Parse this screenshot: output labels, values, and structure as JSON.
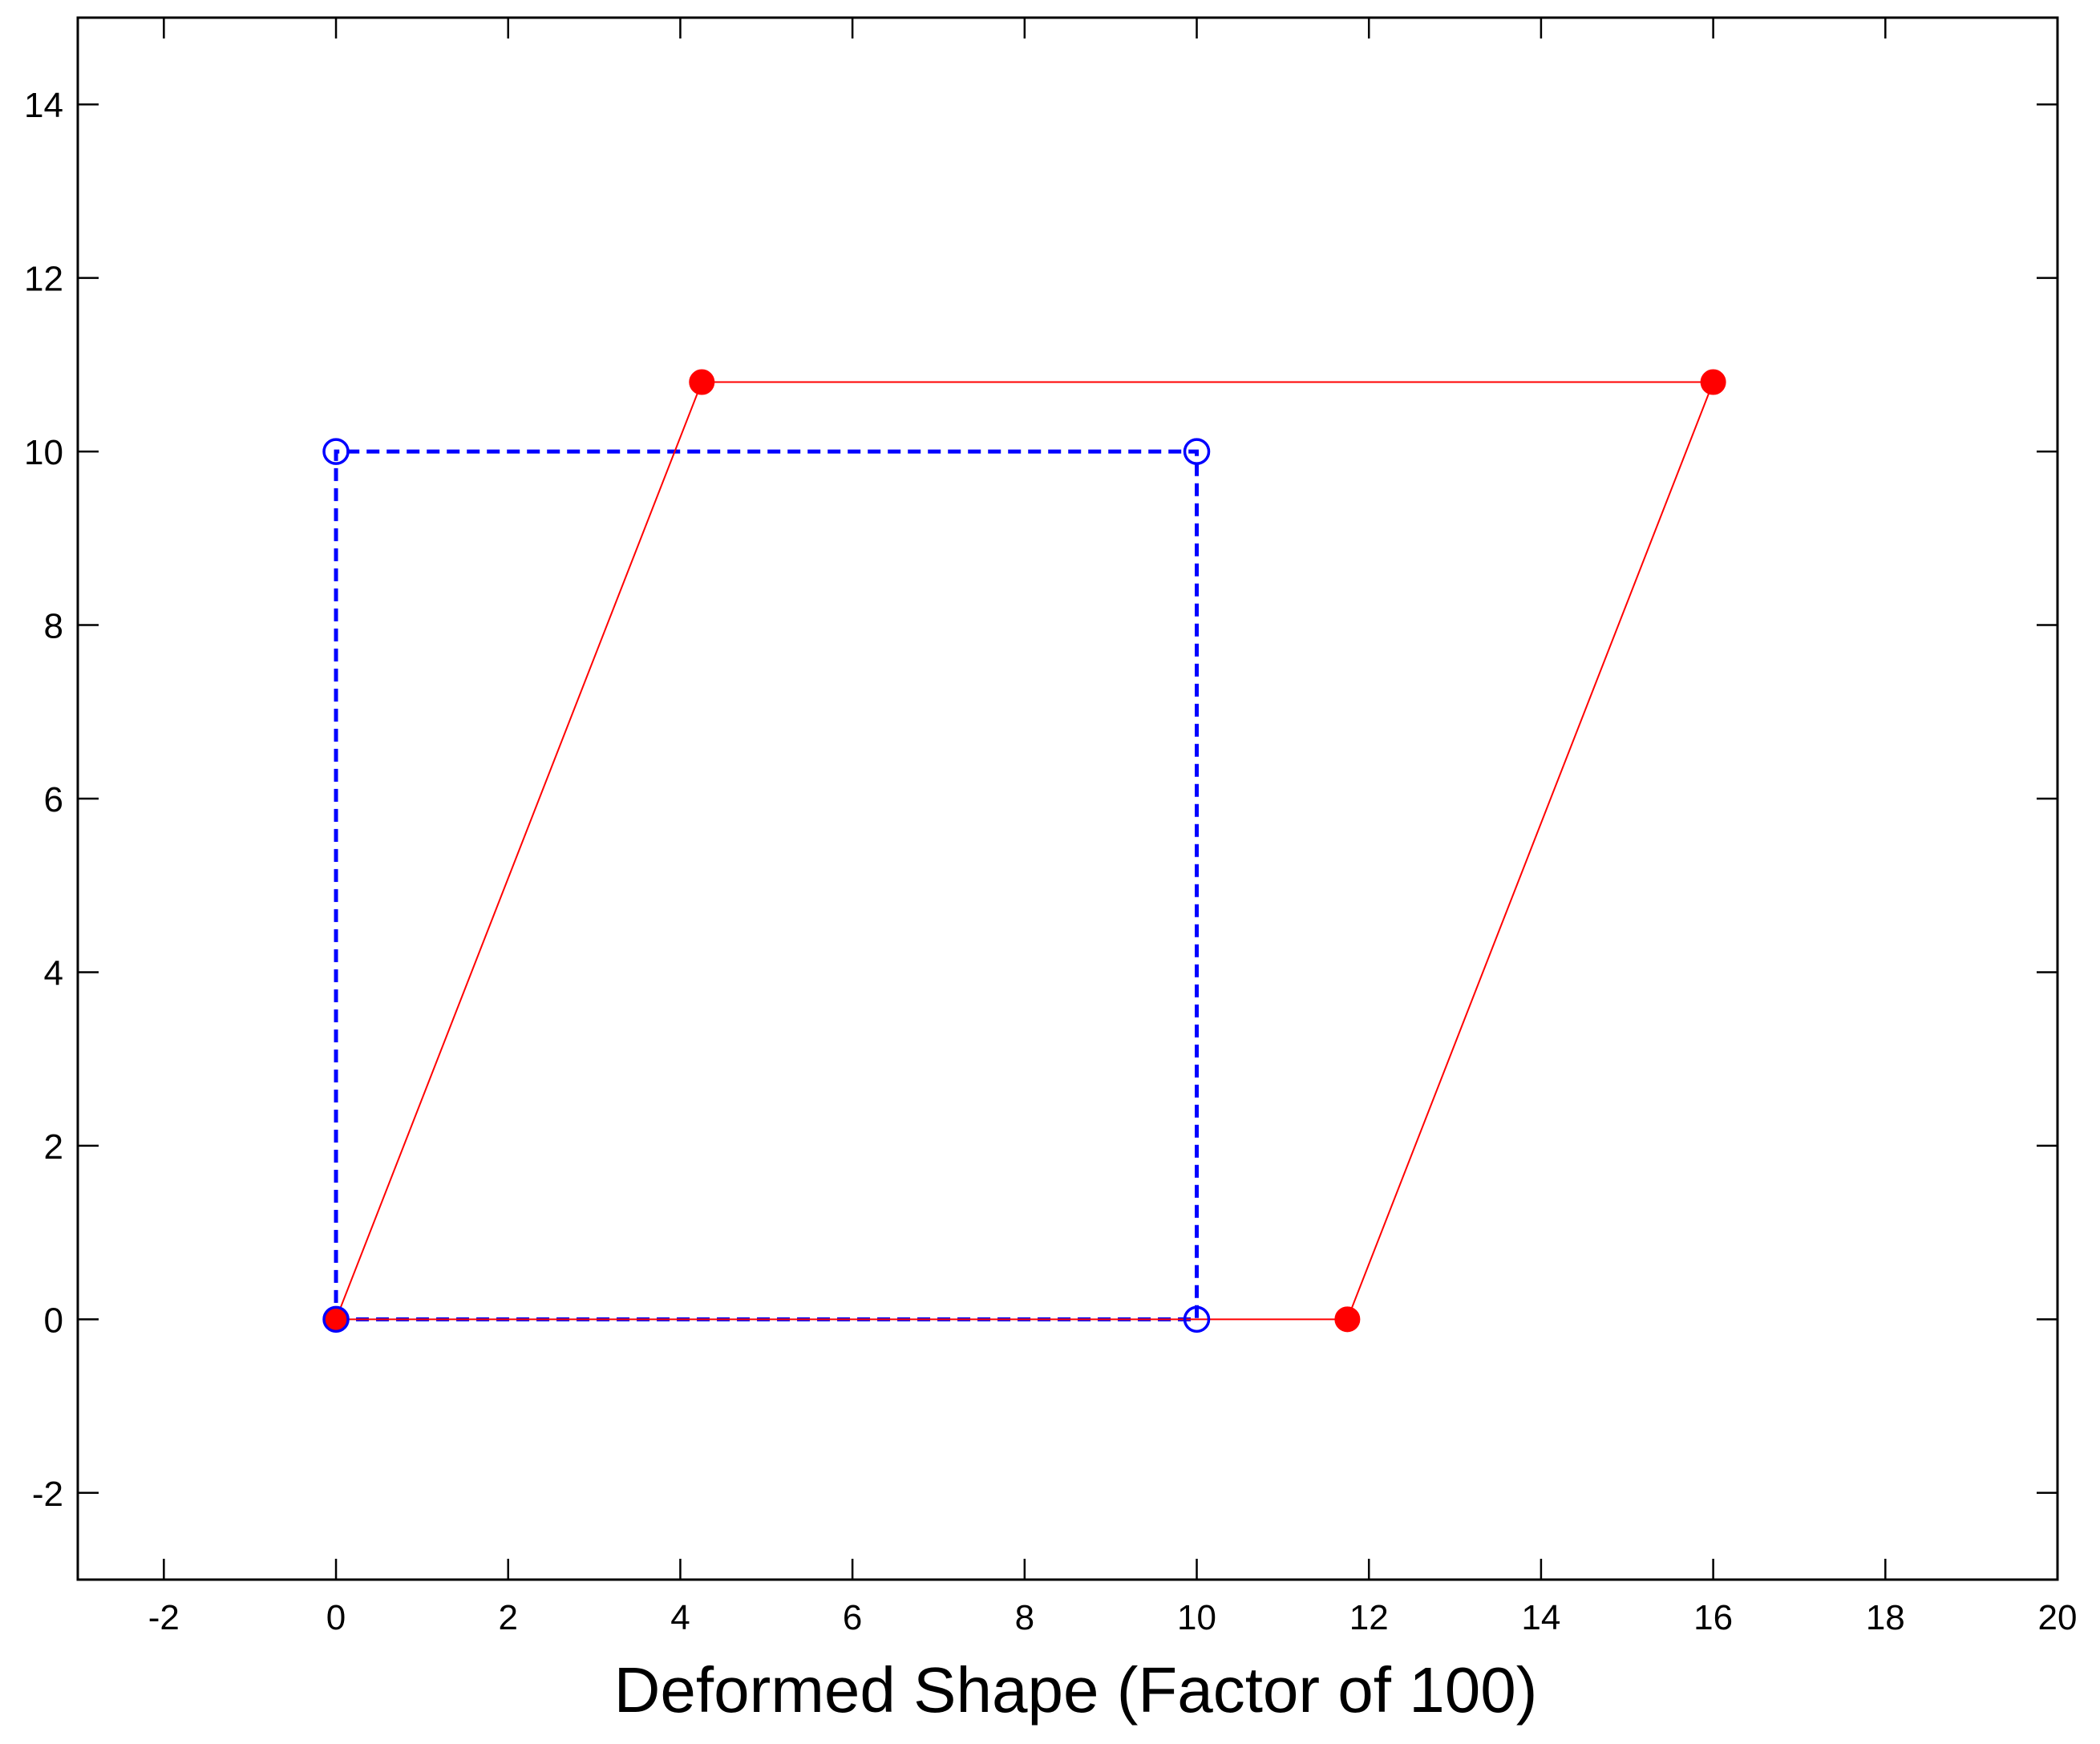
{
  "chart_data": {
    "type": "line",
    "title": "",
    "xlabel": "Deformed Shape (Factor of 100)",
    "ylabel": "",
    "xlim": [
      -3,
      20
    ],
    "ylim": [
      -3,
      15
    ],
    "xticks": [
      -2,
      0,
      2,
      4,
      6,
      8,
      10,
      12,
      14,
      16,
      18,
      20
    ],
    "yticks": [
      -2,
      0,
      2,
      4,
      6,
      8,
      10,
      12,
      14
    ],
    "xtick_labels": [
      "-2",
      "0",
      "2",
      "4",
      "6",
      "8",
      "10",
      "12",
      "14",
      "16",
      "18",
      "20"
    ],
    "ytick_labels": [
      "-2",
      "0",
      "2",
      "4",
      "6",
      "8",
      "10",
      "12",
      "14"
    ],
    "grid": false,
    "legend": "none",
    "series": [
      {
        "style": "dashed",
        "marker": "open-circle",
        "color": "#0000ff",
        "x": [
          0,
          10,
          10,
          0,
          0
        ],
        "y": [
          0,
          0,
          10,
          10,
          0
        ]
      },
      {
        "style": "solid",
        "marker": "filled-circle",
        "color": "#ff0000",
        "x": [
          0,
          11.75,
          16,
          4.25,
          0
        ],
        "y": [
          0,
          0,
          10.8,
          10.8,
          0
        ]
      }
    ]
  }
}
